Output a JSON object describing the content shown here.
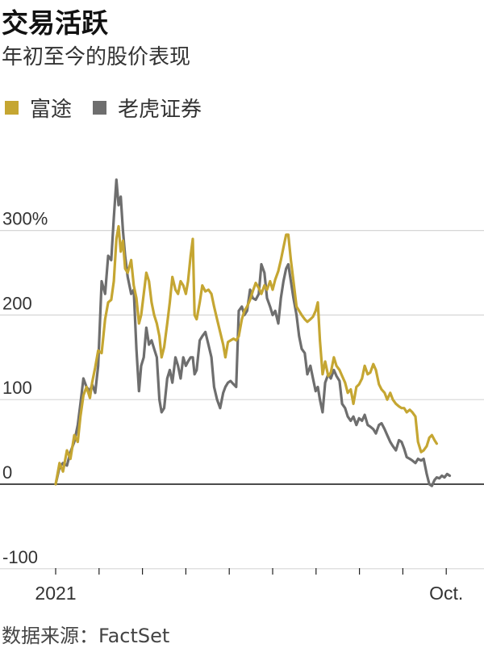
{
  "header": {
    "title": "交易活跃",
    "subtitle": "年初至今的股价表现"
  },
  "legend": {
    "items": [
      {
        "label": "富途",
        "color": "#c5a632"
      },
      {
        "label": "老虎证券",
        "color": "#6e6e6e"
      }
    ]
  },
  "source": "数据来源：FactSet",
  "chart_data": {
    "type": "line",
    "title": "交易活跃",
    "subtitle": "年初至今的股价表现",
    "xlabel": "",
    "ylabel": "",
    "ylim": [
      -100,
      350
    ],
    "y_ticks": [
      {
        "value": 300,
        "label": "300%"
      },
      {
        "value": 200,
        "label": "200"
      },
      {
        "value": 100,
        "label": "100"
      },
      {
        "value": 0,
        "label": "0"
      },
      {
        "value": -100,
        "label": "-100"
      }
    ],
    "x_range": [
      0,
      10.6
    ],
    "x_ticks": [
      {
        "value": 0,
        "label": "2021"
      },
      {
        "value": 1,
        "label": ""
      },
      {
        "value": 2,
        "label": ""
      },
      {
        "value": 3,
        "label": ""
      },
      {
        "value": 4,
        "label": ""
      },
      {
        "value": 5,
        "label": ""
      },
      {
        "value": 6,
        "label": ""
      },
      {
        "value": 7,
        "label": ""
      },
      {
        "value": 8,
        "label": ""
      },
      {
        "value": 9,
        "label": "Oct."
      }
    ],
    "grid": true,
    "legend_position": "top-left",
    "series": [
      {
        "name": "富途",
        "color": "#c5a632",
        "points": [
          [
            0,
            0
          ],
          [
            0.09,
            25
          ],
          [
            0.17,
            15
          ],
          [
            0.26,
            40
          ],
          [
            0.34,
            30
          ],
          [
            0.43,
            58
          ],
          [
            0.51,
            50
          ],
          [
            0.57,
            80
          ],
          [
            0.64,
            105
          ],
          [
            0.71,
            115
          ],
          [
            0.79,
            102
          ],
          [
            0.84,
            120
          ],
          [
            0.91,
            138
          ],
          [
            0.98,
            158
          ],
          [
            1.06,
            155
          ],
          [
            1.14,
            195
          ],
          [
            1.21,
            215
          ],
          [
            1.28,
            218
          ],
          [
            1.34,
            240
          ],
          [
            1.4,
            290
          ],
          [
            1.45,
            305
          ],
          [
            1.5,
            275
          ],
          [
            1.55,
            288
          ],
          [
            1.6,
            255
          ],
          [
            1.66,
            250
          ],
          [
            1.74,
            265
          ],
          [
            1.8,
            235
          ],
          [
            1.86,
            220
          ],
          [
            1.92,
            190
          ],
          [
            1.97,
            200
          ],
          [
            2.03,
            225
          ],
          [
            2.09,
            250
          ],
          [
            2.15,
            240
          ],
          [
            2.21,
            215
          ],
          [
            2.27,
            200
          ],
          [
            2.33,
            190
          ],
          [
            2.39,
            175
          ],
          [
            2.44,
            150
          ],
          [
            2.5,
            162
          ],
          [
            2.57,
            190
          ],
          [
            2.63,
            215
          ],
          [
            2.69,
            245
          ],
          [
            2.76,
            230
          ],
          [
            2.82,
            225
          ],
          [
            2.88,
            240
          ],
          [
            2.94,
            235
          ],
          [
            3.0,
            225
          ],
          [
            3.05,
            240
          ],
          [
            3.11,
            270
          ],
          [
            3.16,
            290
          ],
          [
            3.2,
            200
          ],
          [
            3.25,
            195
          ],
          [
            3.32,
            215
          ],
          [
            3.38,
            235
          ],
          [
            3.45,
            228
          ],
          [
            3.52,
            230
          ],
          [
            3.59,
            225
          ],
          [
            3.65,
            210
          ],
          [
            3.72,
            195
          ],
          [
            3.79,
            180
          ],
          [
            3.86,
            165
          ],
          [
            3.91,
            150
          ],
          [
            3.97,
            168
          ],
          [
            4.03,
            170
          ],
          [
            4.1,
            172
          ],
          [
            4.16,
            170
          ],
          [
            4.22,
            175
          ],
          [
            4.29,
            195
          ],
          [
            4.35,
            205
          ],
          [
            4.41,
            210
          ],
          [
            4.48,
            218
          ],
          [
            4.54,
            228
          ],
          [
            4.61,
            238
          ],
          [
            4.68,
            232
          ],
          [
            4.74,
            225
          ],
          [
            4.81,
            235
          ],
          [
            4.87,
            230
          ],
          [
            4.94,
            240
          ],
          [
            5.0,
            230
          ],
          [
            5.06,
            242
          ],
          [
            5.13,
            252
          ],
          [
            5.19,
            265
          ],
          [
            5.25,
            280
          ],
          [
            5.31,
            295
          ],
          [
            5.36,
            295
          ],
          [
            5.42,
            265
          ],
          [
            5.48,
            240
          ],
          [
            5.55,
            210
          ],
          [
            5.61,
            205
          ],
          [
            5.67,
            200
          ],
          [
            5.74,
            195
          ],
          [
            5.8,
            192
          ],
          [
            5.87,
            195
          ],
          [
            5.93,
            198
          ],
          [
            5.99,
            205
          ],
          [
            6.04,
            215
          ],
          [
            6.09,
            170
          ],
          [
            6.15,
            130
          ],
          [
            6.21,
            145
          ],
          [
            6.28,
            128
          ],
          [
            6.34,
            132
          ],
          [
            6.41,
            150
          ],
          [
            6.47,
            140
          ],
          [
            6.54,
            135
          ],
          [
            6.6,
            128
          ],
          [
            6.67,
            120
          ],
          [
            6.73,
            108
          ],
          [
            6.8,
            112
          ],
          [
            6.86,
            95
          ],
          [
            6.93,
            115
          ],
          [
            6.99,
            118
          ],
          [
            7.06,
            125
          ],
          [
            7.12,
            140
          ],
          [
            7.19,
            130
          ],
          [
            7.25,
            132
          ],
          [
            7.32,
            142
          ],
          [
            7.38,
            135
          ],
          [
            7.45,
            118
          ],
          [
            7.51,
            112
          ],
          [
            7.58,
            108
          ],
          [
            7.64,
            100
          ],
          [
            7.71,
            108
          ],
          [
            7.77,
            100
          ],
          [
            7.84,
            95
          ],
          [
            7.91,
            92
          ],
          [
            7.97,
            90
          ],
          [
            8.03,
            90
          ],
          [
            8.09,
            85
          ],
          [
            8.16,
            88
          ],
          [
            8.22,
            85
          ],
          [
            8.29,
            80
          ],
          [
            8.35,
            50
          ],
          [
            8.42,
            38
          ],
          [
            8.48,
            40
          ],
          [
            8.55,
            45
          ],
          [
            8.61,
            55
          ],
          [
            8.67,
            58
          ],
          [
            8.73,
            52
          ],
          [
            8.78,
            48
          ]
        ]
      },
      {
        "name": "老虎证券",
        "color": "#6e6e6e",
        "points": [
          [
            0,
            0
          ],
          [
            0.09,
            20
          ],
          [
            0.17,
            25
          ],
          [
            0.26,
            22
          ],
          [
            0.34,
            38
          ],
          [
            0.43,
            50
          ],
          [
            0.51,
            70
          ],
          [
            0.57,
            95
          ],
          [
            0.64,
            125
          ],
          [
            0.71,
            115
          ],
          [
            0.79,
            110
          ],
          [
            0.84,
            118
          ],
          [
            0.91,
            108
          ],
          [
            0.98,
            140
          ],
          [
            1.06,
            240
          ],
          [
            1.14,
            225
          ],
          [
            1.21,
            270
          ],
          [
            1.28,
            265
          ],
          [
            1.34,
            315
          ],
          [
            1.4,
            360
          ],
          [
            1.45,
            330
          ],
          [
            1.5,
            340
          ],
          [
            1.55,
            300
          ],
          [
            1.6,
            270
          ],
          [
            1.66,
            245
          ],
          [
            1.74,
            225
          ],
          [
            1.8,
            230
          ],
          [
            1.86,
            160
          ],
          [
            1.92,
            110
          ],
          [
            1.97,
            140
          ],
          [
            2.03,
            150
          ],
          [
            2.09,
            185
          ],
          [
            2.15,
            165
          ],
          [
            2.21,
            170
          ],
          [
            2.27,
            160
          ],
          [
            2.33,
            150
          ],
          [
            2.39,
            100
          ],
          [
            2.44,
            85
          ],
          [
            2.5,
            90
          ],
          [
            2.57,
            125
          ],
          [
            2.63,
            135
          ],
          [
            2.69,
            120
          ],
          [
            2.76,
            150
          ],
          [
            2.82,
            140
          ],
          [
            2.88,
            125
          ],
          [
            2.94,
            150
          ],
          [
            3.0,
            140
          ],
          [
            3.05,
            145
          ],
          [
            3.11,
            150
          ],
          [
            3.16,
            150
          ],
          [
            3.2,
            130
          ],
          [
            3.25,
            135
          ],
          [
            3.32,
            170
          ],
          [
            3.38,
            175
          ],
          [
            3.45,
            180
          ],
          [
            3.52,
            165
          ],
          [
            3.59,
            150
          ],
          [
            3.65,
            115
          ],
          [
            3.72,
            100
          ],
          [
            3.79,
            90
          ],
          [
            3.86,
            108
          ],
          [
            3.91,
            115
          ],
          [
            3.97,
            120
          ],
          [
            4.03,
            122
          ],
          [
            4.1,
            118
          ],
          [
            4.16,
            115
          ],
          [
            4.22,
            205
          ],
          [
            4.29,
            210
          ],
          [
            4.35,
            200
          ],
          [
            4.41,
            205
          ],
          [
            4.48,
            230
          ],
          [
            4.54,
            220
          ],
          [
            4.61,
            218
          ],
          [
            4.68,
            225
          ],
          [
            4.74,
            260
          ],
          [
            4.81,
            250
          ],
          [
            4.87,
            220
          ],
          [
            4.94,
            210
          ],
          [
            5.0,
            200
          ],
          [
            5.06,
            205
          ],
          [
            5.13,
            190
          ],
          [
            5.19,
            220
          ],
          [
            5.25,
            240
          ],
          [
            5.31,
            255
          ],
          [
            5.36,
            260
          ],
          [
            5.42,
            240
          ],
          [
            5.48,
            220
          ],
          [
            5.55,
            200
          ],
          [
            5.61,
            175
          ],
          [
            5.67,
            160
          ],
          [
            5.74,
            155
          ],
          [
            5.8,
            130
          ],
          [
            5.87,
            140
          ],
          [
            5.93,
            125
          ],
          [
            5.99,
            110
          ],
          [
            6.04,
            115
          ],
          [
            6.09,
            100
          ],
          [
            6.15,
            85
          ],
          [
            6.21,
            120
          ],
          [
            6.28,
            130
          ],
          [
            6.34,
            125
          ],
          [
            6.41,
            135
          ],
          [
            6.47,
            128
          ],
          [
            6.54,
            122
          ],
          [
            6.6,
            95
          ],
          [
            6.67,
            90
          ],
          [
            6.73,
            80
          ],
          [
            6.8,
            75
          ],
          [
            6.86,
            80
          ],
          [
            6.93,
            70
          ],
          [
            6.99,
            78
          ],
          [
            7.06,
            75
          ],
          [
            7.12,
            82
          ],
          [
            7.19,
            70
          ],
          [
            7.25,
            68
          ],
          [
            7.32,
            65
          ],
          [
            7.38,
            60
          ],
          [
            7.45,
            70
          ],
          [
            7.51,
            72
          ],
          [
            7.58,
            65
          ],
          [
            7.64,
            58
          ],
          [
            7.71,
            50
          ],
          [
            7.77,
            45
          ],
          [
            7.84,
            40
          ],
          [
            7.91,
            52
          ],
          [
            7.97,
            50
          ],
          [
            8.03,
            42
          ],
          [
            8.09,
            32
          ],
          [
            8.16,
            30
          ],
          [
            8.22,
            28
          ],
          [
            8.29,
            25
          ],
          [
            8.35,
            30
          ],
          [
            8.42,
            28
          ],
          [
            8.48,
            30
          ],
          [
            8.55,
            12
          ],
          [
            8.61,
            0
          ],
          [
            8.67,
            -2
          ],
          [
            8.73,
            5
          ],
          [
            8.78,
            8
          ],
          [
            8.84,
            7
          ],
          [
            8.9,
            10
          ],
          [
            8.96,
            8
          ],
          [
            9.02,
            12
          ],
          [
            9.08,
            10
          ]
        ]
      }
    ]
  }
}
